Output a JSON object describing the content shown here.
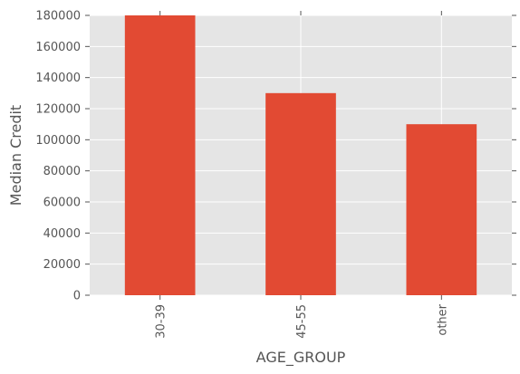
{
  "chart_data": {
    "type": "bar",
    "title": "",
    "xlabel": "AGE_GROUP",
    "ylabel": "Median Credit",
    "categories": [
      "30-39",
      "45-55",
      "other"
    ],
    "values": [
      180000,
      130000,
      110000
    ],
    "ylim": [
      0,
      180000
    ],
    "yticks": [
      0,
      20000,
      40000,
      60000,
      80000,
      100000,
      120000,
      140000,
      160000,
      180000
    ],
    "ytick_labels": [
      "0",
      "20000",
      "40000",
      "60000",
      "80000",
      "100000",
      "120000",
      "140000",
      "160000",
      "180000"
    ],
    "grid": true,
    "legend": "none",
    "colors": {
      "bar": "#e24a33",
      "plot_background": "#e5e5e5",
      "grid": "#ffffff",
      "text": "#555555"
    }
  }
}
